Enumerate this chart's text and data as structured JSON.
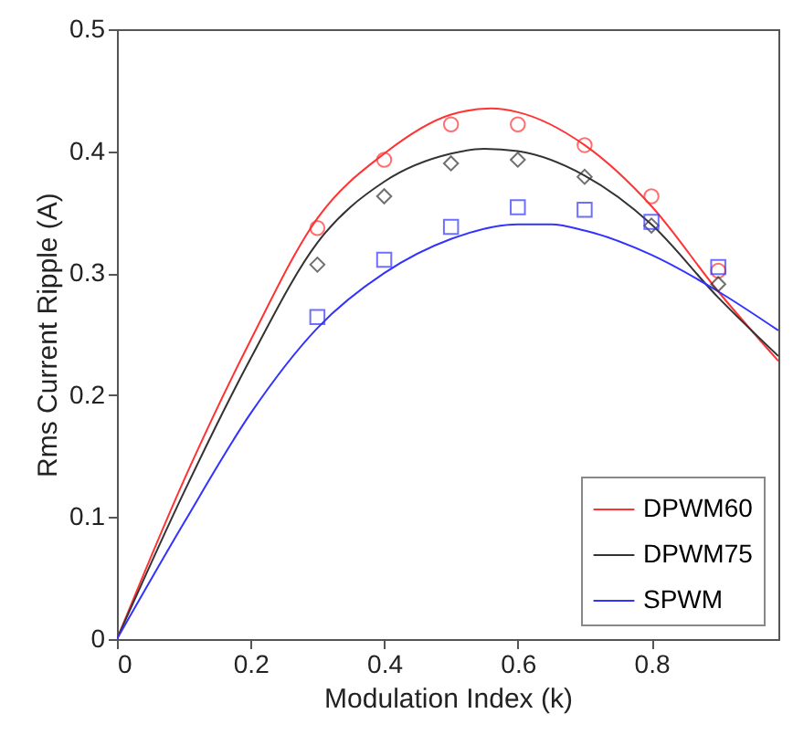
{
  "chart_data": {
    "type": "line",
    "xlabel": "Modulation Index (k)",
    "ylabel": "Rms Current Ripple (A)",
    "xlim": [
      0,
      0.99
    ],
    "ylim": [
      0,
      0.5
    ],
    "xticks": [
      0,
      0.2,
      0.4,
      0.6,
      0.8
    ],
    "yticks": [
      0,
      0.1,
      0.2,
      0.3,
      0.4,
      0.5
    ],
    "grid": false,
    "legend": "bottom right",
    "line_style": "solid",
    "series": [
      {
        "name": "DPWM60",
        "color": "#ff3333",
        "marker": "none",
        "x": [
          0,
          0.1,
          0.2,
          0.3,
          0.4,
          0.5,
          0.56,
          0.6,
          0.7,
          0.8,
          0.9,
          0.99
        ],
        "values": [
          0,
          0.13,
          0.245,
          0.345,
          0.398,
          0.43,
          0.435,
          0.432,
          0.405,
          0.355,
          0.285,
          0.228
        ]
      },
      {
        "name": "DPWM75",
        "color": "#333333",
        "marker": "none",
        "x": [
          0,
          0.1,
          0.2,
          0.3,
          0.4,
          0.5,
          0.55,
          0.6,
          0.7,
          0.8,
          0.9,
          0.99
        ],
        "values": [
          0,
          0.12,
          0.23,
          0.325,
          0.375,
          0.398,
          0.402,
          0.4,
          0.38,
          0.34,
          0.28,
          0.232
        ]
      },
      {
        "name": "SPWM",
        "color": "#3333ff",
        "marker": "none",
        "x": [
          0,
          0.1,
          0.2,
          0.3,
          0.4,
          0.5,
          0.6,
          0.65,
          0.7,
          0.8,
          0.9,
          0.99
        ],
        "values": [
          0,
          0.095,
          0.185,
          0.255,
          0.3,
          0.328,
          0.34,
          0.34,
          0.335,
          0.315,
          0.285,
          0.253
        ]
      },
      {
        "color": "#ff3333",
        "type": "scatter",
        "marker": "circle",
        "x": [
          0.3,
          0.4,
          0.5,
          0.6,
          0.7,
          0.8,
          0.9
        ],
        "values": [
          0.337,
          0.393,
          0.422,
          0.422,
          0.405,
          0.363,
          0.302
        ]
      },
      {
        "color": "#333333",
        "type": "scatter",
        "marker": "diamond",
        "x": [
          0.3,
          0.4,
          0.5,
          0.6,
          0.7,
          0.8,
          0.9
        ],
        "values": [
          0.307,
          0.363,
          0.39,
          0.393,
          0.379,
          0.339,
          0.291
        ]
      },
      {
        "color": "#3333ff",
        "type": "scatter",
        "marker": "square",
        "x": [
          0.3,
          0.4,
          0.5,
          0.6,
          0.7,
          0.8,
          0.9
        ],
        "values": [
          0.264,
          0.311,
          0.338,
          0.354,
          0.352,
          0.342,
          0.305
        ]
      }
    ]
  }
}
